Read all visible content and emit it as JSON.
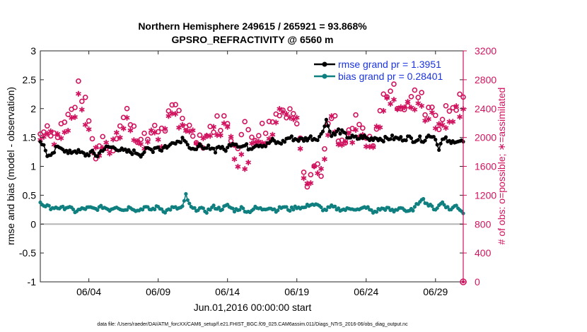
{
  "chart_data": {
    "type": "line",
    "title_line1": "Northern Hemisphere 249615 / 265921 = 93.868%",
    "title_line2": "GPSRO_REFRACTIVITY @ 6560 m",
    "ylabel_left": "rmse and bias (model - observation)",
    "ylabel_right": "# of obs: o=possible; ∗=assimilated",
    "xlabel": "Jun.01,2016 00:00:00 start",
    "footnote": "data file: /Users/raeder/DAI/ATM_forcXX/CAM6_setup/f.e21.FHIST_BGC.f09_025.CAM6assim.011/Diags_NTrS_2016-06/obs_diag_output.nc",
    "ylim_left": [
      -1,
      3
    ],
    "yticks_left": [
      "-1",
      "-0.5",
      "0",
      "0.5",
      "1",
      "1.5",
      "2",
      "2.5",
      "3"
    ],
    "ylim_right": [
      0,
      3200
    ],
    "yticks_right": [
      "0",
      "400",
      "800",
      "1200",
      "1600",
      "2000",
      "2400",
      "2800",
      "3200"
    ],
    "xlim": [
      0.5,
      31.0
    ],
    "xtick_positions": [
      4,
      9,
      14,
      19,
      24,
      29
    ],
    "xtick_labels": [
      "06/04",
      "06/09",
      "06/14",
      "06/19",
      "06/24",
      "06/29"
    ],
    "legend": [
      "rmse grand pr = 1.3951",
      "bias grand pr = 0.28401"
    ],
    "colors": {
      "rmse": "#000000",
      "bias": "#0f7f7f",
      "obs": "#d1135f",
      "zero": "#b5b5b5",
      "legend_text": "#1a33e0",
      "axis_right": "#d1135f"
    },
    "series": [
      {
        "name": "rmse",
        "anchors": [
          [
            0.5,
            1.44
          ],
          [
            0.7,
            1.38
          ],
          [
            1.0,
            1.2
          ],
          [
            1.3,
            1.15
          ],
          [
            1.6,
            1.3
          ],
          [
            2.0,
            1.35
          ],
          [
            2.5,
            1.22
          ],
          [
            3.0,
            1.28
          ],
          [
            3.4,
            1.23
          ],
          [
            3.8,
            1.2
          ],
          [
            4.2,
            1.24
          ],
          [
            4.6,
            1.18
          ],
          [
            5.0,
            1.3
          ],
          [
            5.5,
            1.33
          ],
          [
            6.0,
            1.32
          ],
          [
            6.5,
            1.26
          ],
          [
            7.0,
            1.25
          ],
          [
            7.5,
            1.24
          ],
          [
            7.8,
            1.2
          ],
          [
            8.0,
            1.26
          ],
          [
            8.3,
            1.3
          ],
          [
            8.6,
            1.28
          ],
          [
            8.9,
            1.36
          ],
          [
            9.2,
            1.28
          ],
          [
            9.5,
            1.35
          ],
          [
            9.8,
            1.34
          ],
          [
            10.1,
            1.44
          ],
          [
            10.5,
            1.43
          ],
          [
            10.8,
            1.5
          ],
          [
            11.0,
            1.46
          ],
          [
            11.3,
            1.3
          ],
          [
            11.6,
            1.25
          ],
          [
            11.9,
            1.4
          ],
          [
            12.2,
            1.27
          ],
          [
            12.5,
            1.31
          ],
          [
            12.8,
            1.35
          ],
          [
            13.1,
            1.27
          ],
          [
            13.4,
            1.36
          ],
          [
            13.7,
            1.28
          ],
          [
            14.0,
            1.31
          ],
          [
            14.3,
            1.42
          ],
          [
            14.6,
            1.4
          ],
          [
            15.0,
            1.34
          ],
          [
            15.3,
            1.36
          ],
          [
            15.6,
            1.31
          ],
          [
            16.0,
            1.38
          ],
          [
            16.4,
            1.38
          ],
          [
            16.8,
            1.36
          ],
          [
            17.2,
            1.45
          ],
          [
            17.6,
            1.4
          ],
          [
            18.0,
            1.42
          ],
          [
            18.4,
            1.5
          ],
          [
            18.8,
            1.48
          ],
          [
            19.2,
            1.46
          ],
          [
            19.6,
            1.47
          ],
          [
            20.0,
            1.5
          ],
          [
            20.4,
            1.48
          ],
          [
            20.8,
            1.55
          ],
          [
            21.1,
            1.83
          ],
          [
            21.4,
            1.58
          ],
          [
            21.7,
            1.54
          ],
          [
            22.0,
            1.62
          ],
          [
            22.3,
            1.58
          ],
          [
            22.6,
            1.52
          ],
          [
            23.0,
            1.5
          ],
          [
            23.4,
            1.48
          ],
          [
            23.8,
            1.52
          ],
          [
            24.2,
            1.46
          ],
          [
            24.6,
            1.5
          ],
          [
            25.0,
            1.48
          ],
          [
            25.4,
            1.47
          ],
          [
            25.8,
            1.5
          ],
          [
            26.2,
            1.48
          ],
          [
            26.6,
            1.48
          ],
          [
            27.0,
            1.5
          ],
          [
            27.4,
            1.46
          ],
          [
            27.8,
            1.48
          ],
          [
            28.2,
            1.46
          ],
          [
            28.6,
            1.55
          ],
          [
            29.0,
            1.5
          ],
          [
            29.2,
            1.3
          ],
          [
            29.5,
            1.45
          ],
          [
            29.8,
            1.47
          ],
          [
            30.1,
            1.38
          ],
          [
            30.4,
            1.46
          ],
          [
            30.7,
            1.44
          ],
          [
            31.0,
            1.42
          ]
        ]
      },
      {
        "name": "bias",
        "anchors": [
          [
            0.5,
            0.36
          ],
          [
            0.7,
            0.28
          ],
          [
            1.0,
            0.35
          ],
          [
            1.3,
            0.25
          ],
          [
            1.6,
            0.3
          ],
          [
            2.0,
            0.27
          ],
          [
            2.5,
            0.3
          ],
          [
            3.0,
            0.22
          ],
          [
            3.5,
            0.26
          ],
          [
            4.0,
            0.28
          ],
          [
            4.5,
            0.26
          ],
          [
            5.0,
            0.3
          ],
          [
            5.5,
            0.25
          ],
          [
            6.0,
            0.31
          ],
          [
            6.5,
            0.24
          ],
          [
            7.0,
            0.3
          ],
          [
            7.5,
            0.23
          ],
          [
            8.0,
            0.29
          ],
          [
            8.5,
            0.25
          ],
          [
            9.0,
            0.3
          ],
          [
            9.5,
            0.22
          ],
          [
            10.0,
            0.28
          ],
          [
            10.5,
            0.27
          ],
          [
            10.8,
            0.3
          ],
          [
            11.0,
            0.51
          ],
          [
            11.3,
            0.3
          ],
          [
            11.6,
            0.25
          ],
          [
            12.0,
            0.27
          ],
          [
            12.5,
            0.22
          ],
          [
            13.0,
            0.3
          ],
          [
            13.5,
            0.26
          ],
          [
            14.0,
            0.32
          ],
          [
            14.5,
            0.24
          ],
          [
            15.0,
            0.28
          ],
          [
            15.5,
            0.21
          ],
          [
            16.0,
            0.28
          ],
          [
            16.5,
            0.26
          ],
          [
            17.0,
            0.29
          ],
          [
            17.5,
            0.24
          ],
          [
            18.0,
            0.3
          ],
          [
            18.5,
            0.25
          ],
          [
            19.0,
            0.3
          ],
          [
            19.5,
            0.28
          ],
          [
            20.0,
            0.35
          ],
          [
            20.5,
            0.32
          ],
          [
            21.0,
            0.24
          ],
          [
            21.5,
            0.3
          ],
          [
            22.0,
            0.26
          ],
          [
            22.5,
            0.25
          ],
          [
            23.0,
            0.28
          ],
          [
            23.5,
            0.24
          ],
          [
            24.0,
            0.3
          ],
          [
            24.5,
            0.2
          ],
          [
            25.0,
            0.26
          ],
          [
            25.5,
            0.27
          ],
          [
            26.0,
            0.22
          ],
          [
            26.5,
            0.3
          ],
          [
            27.0,
            0.2
          ],
          [
            27.5,
            0.28
          ],
          [
            28.0,
            0.45
          ],
          [
            28.5,
            0.33
          ],
          [
            29.0,
            0.26
          ],
          [
            29.5,
            0.38
          ],
          [
            30.0,
            0.25
          ],
          [
            30.5,
            0.32
          ],
          [
            31.0,
            0.2
          ]
        ]
      },
      {
        "name": "possible",
        "anchors": [
          [
            0.5,
            2050
          ],
          [
            0.8,
            2200
          ],
          [
            1.2,
            2150
          ],
          [
            1.6,
            2000
          ],
          [
            2.0,
            2150
          ],
          [
            2.6,
            2300
          ],
          [
            3.0,
            2500
          ],
          [
            3.3,
            2700
          ],
          [
            3.6,
            2550
          ],
          [
            4.0,
            2250
          ],
          [
            4.4,
            1750
          ],
          [
            5.0,
            2000
          ],
          [
            5.6,
            1850
          ],
          [
            6.2,
            2150
          ],
          [
            6.8,
            2350
          ],
          [
            7.3,
            2150
          ],
          [
            7.8,
            1900
          ],
          [
            8.3,
            2000
          ],
          [
            8.8,
            2200
          ],
          [
            9.3,
            2050
          ],
          [
            9.8,
            2300
          ],
          [
            10.3,
            2400
          ],
          [
            10.8,
            2300
          ],
          [
            11.3,
            2100
          ],
          [
            11.8,
            2050
          ],
          [
            12.3,
            1950
          ],
          [
            12.8,
            2150
          ],
          [
            13.3,
            2200
          ],
          [
            13.8,
            2250
          ],
          [
            14.3,
            2000
          ],
          [
            14.8,
            1950
          ],
          [
            15.3,
            2150
          ],
          [
            15.8,
            2050
          ],
          [
            16.3,
            2100
          ],
          [
            16.8,
            2150
          ],
          [
            17.3,
            2250
          ],
          [
            17.8,
            2450
          ],
          [
            18.3,
            2300
          ],
          [
            18.8,
            2400
          ],
          [
            19.2,
            2200
          ],
          [
            19.6,
            1400
          ],
          [
            20.0,
            1500
          ],
          [
            20.4,
            1650
          ],
          [
            20.8,
            1550
          ],
          [
            21.2,
            2050
          ],
          [
            21.6,
            2350
          ],
          [
            22.0,
            1950
          ],
          [
            22.4,
            1850
          ],
          [
            22.8,
            2100
          ],
          [
            23.3,
            2200
          ],
          [
            23.8,
            2050
          ],
          [
            24.3,
            1900
          ],
          [
            24.8,
            2150
          ],
          [
            25.3,
            2600
          ],
          [
            25.8,
            2700
          ],
          [
            26.3,
            2500
          ],
          [
            26.8,
            2450
          ],
          [
            27.3,
            2550
          ],
          [
            27.8,
            2600
          ],
          [
            28.3,
            2400
          ],
          [
            28.8,
            2450
          ],
          [
            29.3,
            2200
          ],
          [
            29.8,
            2350
          ],
          [
            30.3,
            2450
          ],
          [
            30.7,
            2500
          ],
          [
            31.0,
            2550
          ]
        ]
      },
      {
        "name": "assimilated",
        "anchors": [
          [
            0.5,
            1950
          ],
          [
            0.8,
            2100
          ],
          [
            1.2,
            2000
          ],
          [
            1.6,
            1900
          ],
          [
            2.0,
            2100
          ],
          [
            2.6,
            2200
          ],
          [
            3.0,
            2400
          ],
          [
            3.3,
            2500
          ],
          [
            3.6,
            2350
          ],
          [
            4.0,
            2100
          ],
          [
            4.4,
            1700
          ],
          [
            5.0,
            1900
          ],
          [
            5.6,
            1800
          ],
          [
            6.2,
            2050
          ],
          [
            6.8,
            2250
          ],
          [
            7.3,
            2050
          ],
          [
            7.8,
            1850
          ],
          [
            8.3,
            1950
          ],
          [
            8.8,
            2100
          ],
          [
            9.3,
            1950
          ],
          [
            9.8,
            2200
          ],
          [
            10.3,
            2300
          ],
          [
            10.8,
            2200
          ],
          [
            11.3,
            2000
          ],
          [
            11.8,
            1950
          ],
          [
            12.3,
            1850
          ],
          [
            12.8,
            2050
          ],
          [
            13.3,
            2100
          ],
          [
            13.8,
            2150
          ],
          [
            14.3,
            1900
          ],
          [
            14.8,
            1700
          ],
          [
            15.3,
            1650
          ],
          [
            15.8,
            1950
          ],
          [
            16.3,
            2000
          ],
          [
            16.8,
            2050
          ],
          [
            17.3,
            2150
          ],
          [
            17.8,
            2350
          ],
          [
            18.3,
            2200
          ],
          [
            18.8,
            2300
          ],
          [
            19.2,
            2050
          ],
          [
            19.6,
            1300
          ],
          [
            20.0,
            1400
          ],
          [
            20.4,
            1550
          ],
          [
            20.8,
            1450
          ],
          [
            21.2,
            1950
          ],
          [
            21.6,
            2250
          ],
          [
            22.0,
            1850
          ],
          [
            22.4,
            1750
          ],
          [
            22.8,
            2000
          ],
          [
            23.3,
            2100
          ],
          [
            23.8,
            1950
          ],
          [
            24.3,
            1800
          ],
          [
            24.8,
            2050
          ],
          [
            25.3,
            2500
          ],
          [
            25.8,
            2600
          ],
          [
            26.3,
            2400
          ],
          [
            26.8,
            2350
          ],
          [
            27.3,
            2450
          ],
          [
            27.8,
            2500
          ],
          [
            28.3,
            2300
          ],
          [
            28.8,
            2350
          ],
          [
            29.3,
            2100
          ],
          [
            29.8,
            2250
          ],
          [
            30.3,
            2350
          ],
          [
            30.7,
            2400
          ],
          [
            31.0,
            2450
          ]
        ]
      }
    ],
    "right_axis_end_marker_value": 0
  }
}
